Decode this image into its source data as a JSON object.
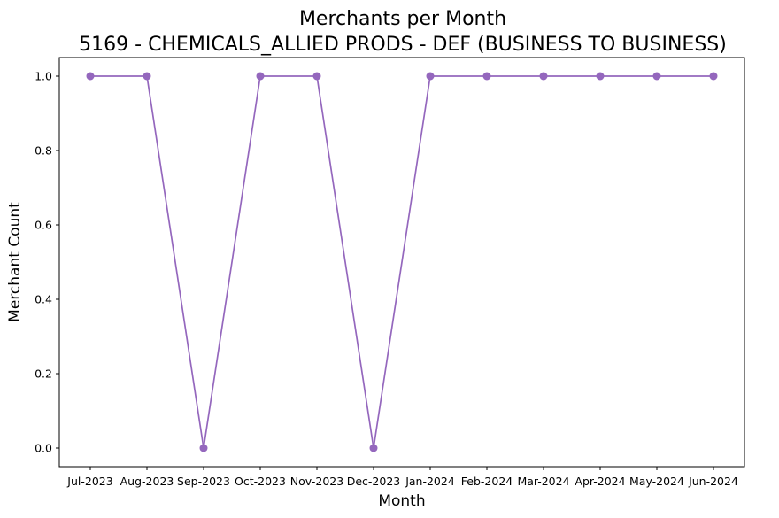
{
  "chart_data": {
    "type": "line",
    "title": "Merchants per Month",
    "subtitle": "5169 - CHEMICALS_ALLIED PRODS - DEF (BUSINESS TO BUSINESS)",
    "xlabel": "Month",
    "ylabel": "Merchant Count",
    "categories": [
      "Jul-2023",
      "Aug-2023",
      "Sep-2023",
      "Oct-2023",
      "Nov-2023",
      "Dec-2023",
      "Jan-2024",
      "Feb-2024",
      "Mar-2024",
      "Apr-2024",
      "May-2024",
      "Jun-2024"
    ],
    "series": [
      {
        "values": [
          1,
          1,
          0,
          1,
          1,
          0,
          1,
          1,
          1,
          1,
          1,
          1
        ],
        "color": "#9467bd"
      }
    ],
    "ylim": [
      -0.05,
      1.05
    ],
    "yticks": [
      0.0,
      0.2,
      0.4,
      0.6,
      0.8,
      1.0
    ],
    "ytick_labels": [
      "0.0",
      "0.2",
      "0.4",
      "0.6",
      "0.8",
      "1.0"
    ],
    "grid": false,
    "markers": "circle"
  }
}
